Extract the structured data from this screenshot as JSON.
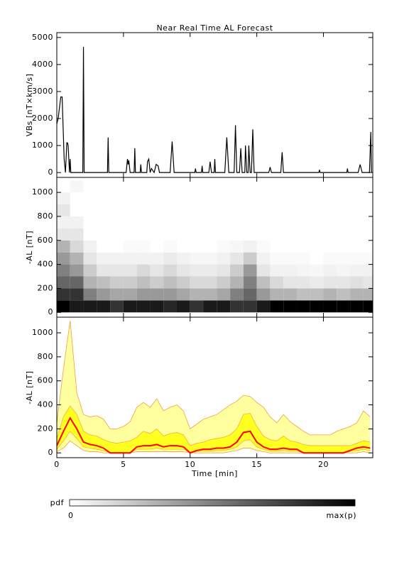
{
  "chart_data": [
    {
      "type": "line",
      "title": "Near Real Time AL Forecast",
      "ylabel": "VBs [nT×km/s]",
      "x": [
        0,
        0.1,
        0.3,
        0.4,
        0.55,
        0.65,
        0.75,
        0.8,
        0.85,
        0.95,
        1,
        1.05,
        1.95,
        2,
        2.05,
        3.8,
        3.85,
        3.9,
        5.2,
        5.3,
        5.35,
        5.4,
        5.5,
        5.8,
        5.85,
        5.9,
        6.25,
        6.3,
        6.35,
        6.75,
        6.8,
        6.9,
        7,
        7.1,
        7.3,
        7.45,
        7.6,
        7.7,
        8.5,
        8.65,
        8.8,
        10.35,
        10.4,
        10.45,
        10.85,
        10.9,
        10.95,
        11.4,
        11.5,
        11.6,
        11.8,
        11.85,
        11.9,
        12.6,
        12.75,
        12.9,
        13.3,
        13.4,
        13.5,
        13.7,
        13.8,
        13.9,
        14.1,
        14.15,
        14.25,
        14.35,
        14.4,
        14.5,
        14.6,
        14.7,
        14.8,
        15.9,
        16,
        16.1,
        16.8,
        16.9,
        17,
        19.65,
        19.7,
        19.75,
        21.75,
        21.8,
        21.85,
        22.6,
        22.75,
        22.9,
        23.45,
        23.55,
        23.6
      ],
      "values": [
        1800,
        2000,
        2800,
        2800,
        500,
        0,
        1100,
        1100,
        1000,
        0,
        500,
        0,
        0,
        4650,
        0,
        0,
        1300,
        0,
        0,
        500,
        300,
        450,
        0,
        0,
        900,
        0,
        0,
        300,
        0,
        0,
        400,
        500,
        0,
        150,
        0,
        300,
        250,
        0,
        0,
        1150,
        0,
        0,
        150,
        0,
        0,
        250,
        0,
        0,
        400,
        0,
        0,
        500,
        0,
        0,
        1300,
        0,
        0,
        1750,
        0,
        0,
        900,
        0,
        0,
        1000,
        0,
        0,
        1000,
        0,
        0,
        1600,
        0,
        0,
        200,
        0,
        0,
        750,
        0,
        0,
        100,
        0,
        0,
        150,
        0,
        0,
        300,
        0,
        0,
        1500,
        0
      ],
      "color": "#000000",
      "xlim": [
        0,
        23.7
      ],
      "xticks": [
        0,
        5,
        10,
        15,
        20
      ],
      "xtick_labels": false,
      "ylim": [
        -180,
        5180
      ],
      "yticks": [
        0,
        1000,
        2000,
        3000,
        4000,
        5000
      ]
    },
    {
      "type": "heatmap",
      "ylabel": "-AL [nT]",
      "x_bins": [
        0,
        1,
        2,
        3,
        4,
        5,
        6,
        7,
        8,
        9,
        10,
        11,
        12,
        13,
        14,
        15,
        16,
        17,
        18,
        19,
        20,
        21,
        22,
        23,
        23.7
      ],
      "y_bins": [
        0,
        100,
        200,
        300,
        400,
        500,
        600,
        700,
        800,
        900,
        1000,
        1100
      ],
      "z": [
        [
          1,
          0.8,
          0.6,
          0.5,
          0.4,
          0.3,
          0.1,
          0.05,
          0.1,
          0.05,
          0
        ],
        [
          0.9,
          0.8,
          0.6,
          0.4,
          0.3,
          0.15,
          0.1,
          0.05,
          0,
          0,
          0.03
        ],
        [
          0.9,
          0.5,
          0.3,
          0.2,
          0.1,
          0.05,
          0,
          0,
          0,
          0,
          0
        ],
        [
          0.9,
          0.4,
          0.25,
          0.1,
          0.05,
          0,
          0,
          0,
          0,
          0,
          0
        ],
        [
          0.8,
          0.35,
          0.2,
          0.1,
          0.05,
          0,
          0,
          0,
          0,
          0,
          0
        ],
        [
          0.9,
          0.35,
          0.2,
          0.1,
          0.05,
          0.02,
          0,
          0,
          0,
          0,
          0
        ],
        [
          0.9,
          0.4,
          0.25,
          0.15,
          0.05,
          0.02,
          0,
          0,
          0,
          0,
          0
        ],
        [
          0.9,
          0.4,
          0.2,
          0.1,
          0.05,
          0,
          0,
          0,
          0,
          0,
          0
        ],
        [
          0.85,
          0.4,
          0.25,
          0.15,
          0.08,
          0.02,
          0,
          0,
          0,
          0,
          0
        ],
        [
          0.9,
          0.35,
          0.2,
          0.1,
          0.05,
          0,
          0,
          0,
          0,
          0,
          0
        ],
        [
          0.8,
          0.3,
          0.15,
          0.08,
          0.03,
          0,
          0,
          0,
          0,
          0,
          0
        ],
        [
          0.9,
          0.3,
          0.15,
          0.08,
          0.03,
          0,
          0,
          0,
          0,
          0,
          0
        ],
        [
          0.9,
          0.35,
          0.2,
          0.1,
          0.05,
          0.02,
          0,
          0,
          0,
          0,
          0
        ],
        [
          0.8,
          0.5,
          0.3,
          0.2,
          0.1,
          0.03,
          0,
          0,
          0,
          0,
          0
        ],
        [
          0.8,
          0.6,
          0.5,
          0.4,
          0.2,
          0.05,
          0,
          0,
          0,
          0,
          0
        ],
        [
          0.9,
          0.4,
          0.25,
          0.1,
          0.05,
          0.02,
          0,
          0,
          0,
          0,
          0
        ],
        [
          1,
          0.3,
          0.15,
          0.05,
          0.02,
          0,
          0,
          0,
          0,
          0,
          0
        ],
        [
          1,
          0.3,
          0.1,
          0.05,
          0.02,
          0,
          0,
          0,
          0,
          0,
          0
        ],
        [
          1,
          0.25,
          0.1,
          0.04,
          0.02,
          0,
          0,
          0,
          0,
          0,
          0
        ],
        [
          1,
          0.25,
          0.08,
          0.03,
          0,
          0,
          0,
          0,
          0,
          0,
          0
        ],
        [
          1,
          0.3,
          0.1,
          0.05,
          0.02,
          0,
          0,
          0,
          0,
          0,
          0
        ],
        [
          1,
          0.25,
          0.1,
          0.04,
          0.02,
          0,
          0,
          0,
          0,
          0,
          0
        ],
        [
          1,
          0.3,
          0.12,
          0.05,
          0.02,
          0,
          0,
          0,
          0,
          0,
          0
        ],
        [
          1,
          0.3,
          0.1,
          0.05,
          0.02,
          0,
          0,
          0,
          0,
          0,
          0
        ]
      ],
      "xlim": [
        0,
        23.7
      ],
      "xticks": [
        0,
        5,
        10,
        15,
        20
      ],
      "xtick_labels": false,
      "ylim": [
        -40,
        1125
      ],
      "yticks": [
        0,
        200,
        400,
        600,
        800,
        1000
      ]
    },
    {
      "type": "band",
      "ylabel": "-AL [nT]",
      "xlabel": "Time [min]",
      "x": [
        0,
        0.5,
        1,
        1.5,
        2,
        2.5,
        3,
        3.5,
        4,
        4.5,
        5,
        5.5,
        6,
        6.5,
        7,
        7.5,
        8,
        8.5,
        9,
        9.5,
        10,
        10.5,
        11,
        11.5,
        12,
        12.5,
        13,
        13.5,
        14,
        14.5,
        15,
        15.5,
        16,
        16.5,
        17,
        17.5,
        18,
        18.5,
        19,
        19.5,
        20,
        20.5,
        21,
        21.5,
        22,
        22.5,
        23,
        23.5
      ],
      "bands": [
        {
          "fill": "#ffffa0",
          "edge": "#f0a040",
          "lower": [
            10,
            40,
            100,
            60,
            20,
            10,
            10,
            0,
            0,
            0,
            0,
            0,
            10,
            10,
            10,
            10,
            10,
            10,
            10,
            10,
            0,
            0,
            0,
            0,
            0,
            0,
            10,
            20,
            40,
            40,
            20,
            10,
            0,
            0,
            0,
            0,
            0,
            0,
            0,
            0,
            0,
            0,
            0,
            0,
            0,
            0,
            10,
            0
          ],
          "upper": [
            250,
            700,
            1100,
            500,
            320,
            300,
            310,
            280,
            200,
            200,
            220,
            260,
            380,
            420,
            380,
            450,
            350,
            380,
            400,
            350,
            200,
            240,
            280,
            300,
            320,
            360,
            400,
            430,
            480,
            470,
            420,
            380,
            300,
            250,
            320,
            260,
            220,
            180,
            150,
            150,
            150,
            150,
            180,
            200,
            220,
            250,
            350,
            300
          ]
        },
        {
          "fill": "#ffff20",
          "edge": "#f0b040",
          "lower": [
            30,
            100,
            180,
            120,
            50,
            40,
            30,
            20,
            0,
            0,
            0,
            0,
            30,
            30,
            30,
            40,
            30,
            30,
            30,
            30,
            0,
            10,
            15,
            15,
            20,
            20,
            30,
            50,
            100,
            110,
            50,
            30,
            15,
            15,
            20,
            15,
            15,
            0,
            0,
            0,
            0,
            0,
            0,
            0,
            10,
            20,
            30,
            20
          ],
          "upper": [
            120,
            300,
            390,
            320,
            180,
            150,
            140,
            110,
            90,
            80,
            90,
            100,
            130,
            180,
            160,
            200,
            140,
            160,
            170,
            150,
            60,
            80,
            90,
            110,
            120,
            130,
            150,
            200,
            320,
            330,
            220,
            140,
            110,
            100,
            140,
            100,
            90,
            70,
            60,
            60,
            60,
            60,
            60,
            60,
            60,
            80,
            100,
            90
          ]
        }
      ],
      "series": [
        {
          "color": "#ff0000",
          "values": [
            60,
            180,
            290,
            200,
            90,
            70,
            60,
            40,
            0,
            0,
            0,
            0,
            50,
            60,
            60,
            70,
            50,
            60,
            60,
            50,
            0,
            20,
            30,
            30,
            40,
            40,
            50,
            90,
            170,
            180,
            90,
            50,
            30,
            30,
            40,
            30,
            30,
            0,
            0,
            0,
            0,
            0,
            0,
            0,
            20,
            40,
            50,
            40
          ]
        }
      ],
      "xlim": [
        0,
        23.7
      ],
      "xticks": [
        0,
        5,
        10,
        15,
        20
      ],
      "xtick_labels": true,
      "ylim": [
        -40,
        1130
      ],
      "yticks": [
        0,
        200,
        400,
        600,
        800,
        1000
      ]
    }
  ],
  "colorbar": {
    "label": "pdf",
    "min_label": "0",
    "max_label": "max(p)",
    "colors": [
      "#ffffff",
      "#000000"
    ]
  }
}
